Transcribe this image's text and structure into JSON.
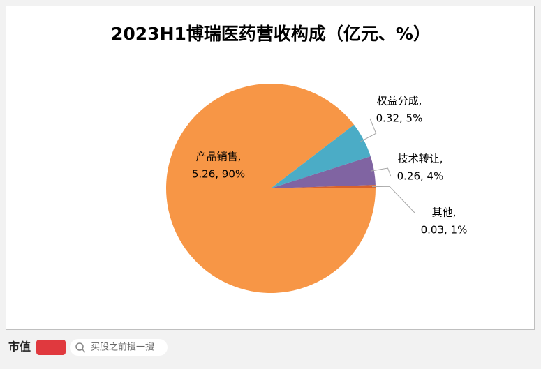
{
  "chart_data": {
    "type": "pie",
    "title": "2023H1博瑞医药营收构成（亿元、%）",
    "categories": [
      "产品销售,",
      "权益分成,",
      "技术转让,",
      "其他,"
    ],
    "values": [
      5.26,
      0.32,
      0.26,
      0.03
    ],
    "value_labels": [
      "5.26, 90%",
      "0.32, 5%",
      "0.26, 4%",
      "0.03, 1%"
    ],
    "colors": [
      "#f79646",
      "#4bacc6",
      "#8064a2",
      "#d9622b"
    ],
    "start_angle": 90
  },
  "footer": {
    "brand": "市值",
    "search": "买股之前搜一搜"
  }
}
